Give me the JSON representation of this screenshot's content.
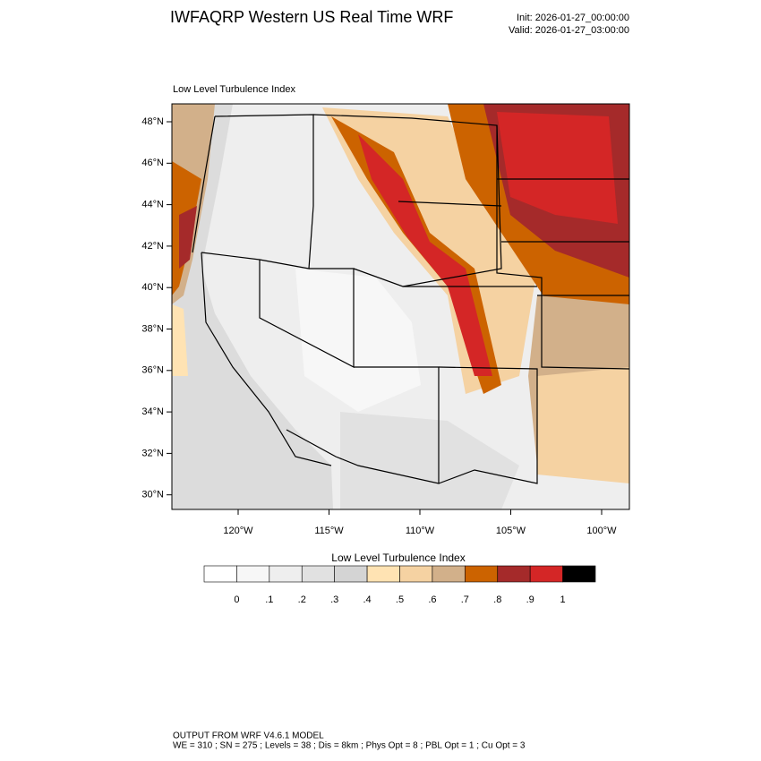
{
  "header": {
    "title": "IWFAQRP Western US Real Time WRF",
    "init": "Init: 2026-01-27_00:00:00",
    "valid": "Valid: 2026-01-27_03:00:00"
  },
  "map": {
    "title": "Low Level Turbulence Index",
    "lat_labels": [
      "48°N",
      "46°N",
      "44°N",
      "42°N",
      "40°N",
      "38°N",
      "36°N",
      "34°N",
      "32°N",
      "30°N"
    ],
    "lon_labels": [
      "120°W",
      "115°W",
      "110°W",
      "105°W",
      "100°W"
    ]
  },
  "colorbar": {
    "title": "Low Level Turbulence Index",
    "colors": [
      "#ffffff",
      "#f7f7f7",
      "#eeeeee",
      "#e1e1e1",
      "#d4d4d4",
      "#ffe3b3",
      "#f5d2a2",
      "#d2b08a",
      "#cc6300",
      "#a52a2a",
      "#d42626",
      "#000000"
    ],
    "labels": [
      "0",
      ".1",
      ".2",
      ".3",
      ".4",
      ".5",
      ".6",
      ".7",
      ".8",
      ".9",
      "1"
    ]
  },
  "footer": {
    "line1": "OUTPUT FROM WRF V4.6.1 MODEL",
    "line2": "WE = 310 ; SN = 275 ; Levels = 38 ; Dis = 8km ; Phys Opt = 8 ; PBL Opt = 1 ; Cu Opt = 3"
  }
}
